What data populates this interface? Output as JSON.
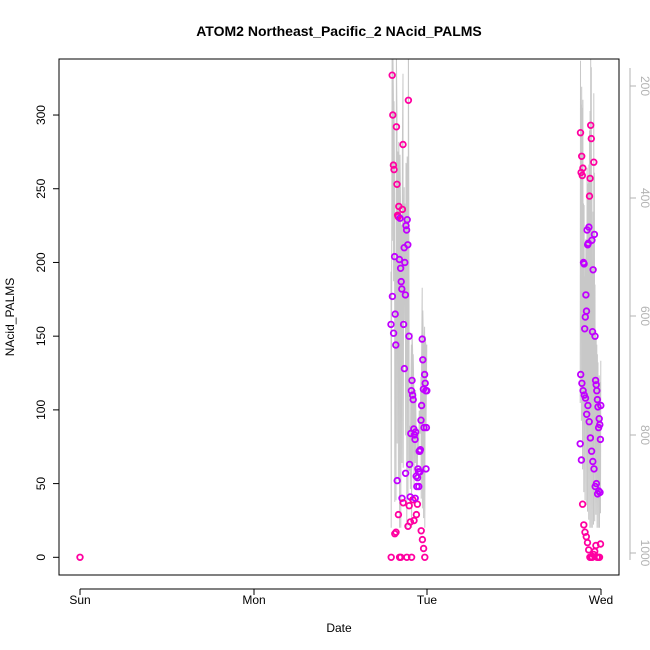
{
  "chart_data": {
    "type": "scatter",
    "title": "ATOM2 Northeast_Pacific_2 NAcid_PALMS",
    "xlabel": "Date",
    "ylabel": "NAcid_PALMS",
    "xlim_days": [
      "Sun",
      "Wed"
    ],
    "x_ticks": [
      "Sun",
      "Mon",
      "Tue",
      "Wed"
    ],
    "y_ticks": [
      "0",
      "50",
      "100",
      "150",
      "200",
      "250",
      "300"
    ],
    "ylim": [
      -12,
      338
    ],
    "y2_ticks": [
      "200",
      "400",
      "600",
      "800",
      "1000"
    ],
    "y2_reversed": true,
    "y2_label": "",
    "grid": false,
    "legend": "none",
    "colors": {
      "point_hi": "#ff00a0",
      "point_lo": "#c000ff",
      "line": "#c8c8c8",
      "axis": "#000000",
      "axis_right": "#b3b3b3"
    },
    "series": [
      {
        "x": [
          "Sun 00:00",
          "Mon 19:00",
          "Mon 19:10",
          "Mon 19:15",
          "Mon 19:20",
          "Mon 19:25",
          "Mon 19:30",
          "Mon 19:35",
          "Mon 19:40",
          "Mon 19:45",
          "Mon 19:50",
          "Mon 19:55",
          "Mon 20:00",
          "Mon 20:05",
          "Mon 20:10",
          "Mon 20:15",
          "Mon 20:20",
          "Mon 20:25",
          "Mon 20:30",
          "Mon 20:35",
          "Mon 20:40",
          "Mon 20:45",
          "Mon 20:50",
          "Mon 20:55",
          "Mon 21:00",
          "Mon 21:05",
          "Mon 21:10",
          "Mon 21:15",
          "Mon 21:20",
          "Mon 21:25",
          "Mon 21:30",
          "Mon 21:35",
          "Mon 21:40",
          "Mon 21:45",
          "Mon 21:50",
          "Mon 21:55",
          "Mon 22:00",
          "Mon 22:05",
          "Mon 22:10",
          "Mon 22:15",
          "Mon 22:20",
          "Mon 22:25",
          "Mon 22:30",
          "Mon 22:35",
          "Mon 22:40",
          "Mon 22:45",
          "Mon 22:50",
          "Mon 22:55",
          "Mon 23:00",
          "Mon 23:05",
          "Mon 23:10",
          "Mon 23:15",
          "Mon 23:20",
          "Mon 23:25",
          "Mon 23:30",
          "Mon 23:35",
          "Mon 23:40",
          "Mon 23:45",
          "Mon 23:50",
          "Mon 23:55",
          "Mon 23:58",
          "Mon 19:02",
          "Mon 19:12",
          "Mon 19:22",
          "Mon 19:32",
          "Mon 19:42",
          "Mon 19:52",
          "Mon 20:02",
          "Mon 20:12",
          "Mon 20:22",
          "Mon 20:32",
          "Mon 20:42",
          "Mon 20:52",
          "Mon 21:02",
          "Mon 21:12",
          "Mon 21:22",
          "Mon 21:32",
          "Mon 21:42",
          "Mon 21:52",
          "Mon 22:02",
          "Mon 22:12",
          "Mon 22:22",
          "Mon 22:32",
          "Mon 22:42",
          "Mon 22:52",
          "Mon 23:02",
          "Mon 23:12",
          "Mon 23:22",
          "Mon 23:32",
          "Mon 23:42",
          "Mon 23:52"
        ],
        "y": [
          0,
          158,
          327,
          300,
          266,
          263,
          204,
          165,
          144,
          292,
          253,
          232,
          231,
          238,
          202,
          230,
          196,
          187,
          182,
          236,
          280,
          158,
          210,
          200,
          178,
          225,
          222,
          229,
          212,
          310,
          150,
          63,
          41,
          84,
          113,
          120,
          110,
          107,
          87,
          83,
          80,
          85,
          55,
          48,
          36,
          60,
          58,
          72,
          72,
          73,
          93,
          103,
          148,
          134,
          114,
          88,
          124,
          118,
          113,
          88,
          113,
          0,
          177,
          152,
          16,
          17,
          52,
          29,
          0,
          0,
          40,
          37,
          128,
          57,
          0,
          21,
          35,
          24,
          0,
          39,
          25,
          40,
          29,
          54,
          48,
          58,
          18,
          12,
          6,
          0,
          60
        ]
      },
      {
        "x": [
          "Tue 21:10",
          "Tue 21:15",
          "Tue 21:20",
          "Tue 21:25",
          "Tue 21:30",
          "Tue 21:35",
          "Tue 21:40",
          "Tue 21:45",
          "Tue 21:50",
          "Tue 21:55",
          "Tue 22:00",
          "Tue 22:05",
          "Tue 22:10",
          "Tue 22:15",
          "Tue 22:20",
          "Tue 22:25",
          "Tue 22:30",
          "Tue 22:35",
          "Tue 22:40",
          "Tue 22:45",
          "Tue 22:50",
          "Tue 22:55",
          "Tue 23:00",
          "Tue 23:05",
          "Tue 23:10",
          "Tue 23:15",
          "Tue 23:20",
          "Tue 23:25",
          "Tue 23:30",
          "Tue 23:35",
          "Tue 23:40",
          "Tue 23:45",
          "Tue 23:50",
          "Tue 23:55",
          "Tue 23:58",
          "Tue 21:12",
          "Tue 21:22",
          "Tue 21:32",
          "Tue 21:42",
          "Tue 21:52",
          "Tue 22:02",
          "Tue 22:12",
          "Tue 22:22",
          "Tue 22:32",
          "Tue 22:42",
          "Tue 22:52",
          "Tue 23:02",
          "Tue 23:12",
          "Tue 23:22",
          "Tue 23:32",
          "Tue 23:42",
          "Tue 23:52",
          "Tue 21:08",
          "Tue 21:18",
          "Tue 21:28",
          "Tue 21:38",
          "Tue 21:48",
          "Tue 21:58",
          "Tue 22:08",
          "Tue 22:18",
          "Tue 22:28",
          "Tue 22:38",
          "Tue 22:48",
          "Tue 22:58",
          "Tue 23:08",
          "Tue 23:18",
          "Tue 23:28",
          "Tue 23:38",
          "Tue 23:48",
          "Tue 23:56"
        ],
        "y": [
          288,
          261,
          272,
          259,
          264,
          200,
          199,
          155,
          163,
          178,
          167,
          222,
          212,
          213,
          224,
          245,
          257,
          293,
          284,
          215,
          153,
          195,
          268,
          219,
          150,
          120,
          117,
          113,
          107,
          102,
          88,
          94,
          90,
          80,
          103,
          124,
          118,
          113,
          110,
          108,
          97,
          103,
          92,
          81,
          72,
          65,
          60,
          48,
          50,
          43,
          45,
          44,
          77,
          66,
          36,
          22,
          17,
          14,
          10,
          5,
          0,
          0,
          0,
          2,
          4,
          8,
          0,
          0,
          0,
          9
        ]
      }
    ]
  }
}
